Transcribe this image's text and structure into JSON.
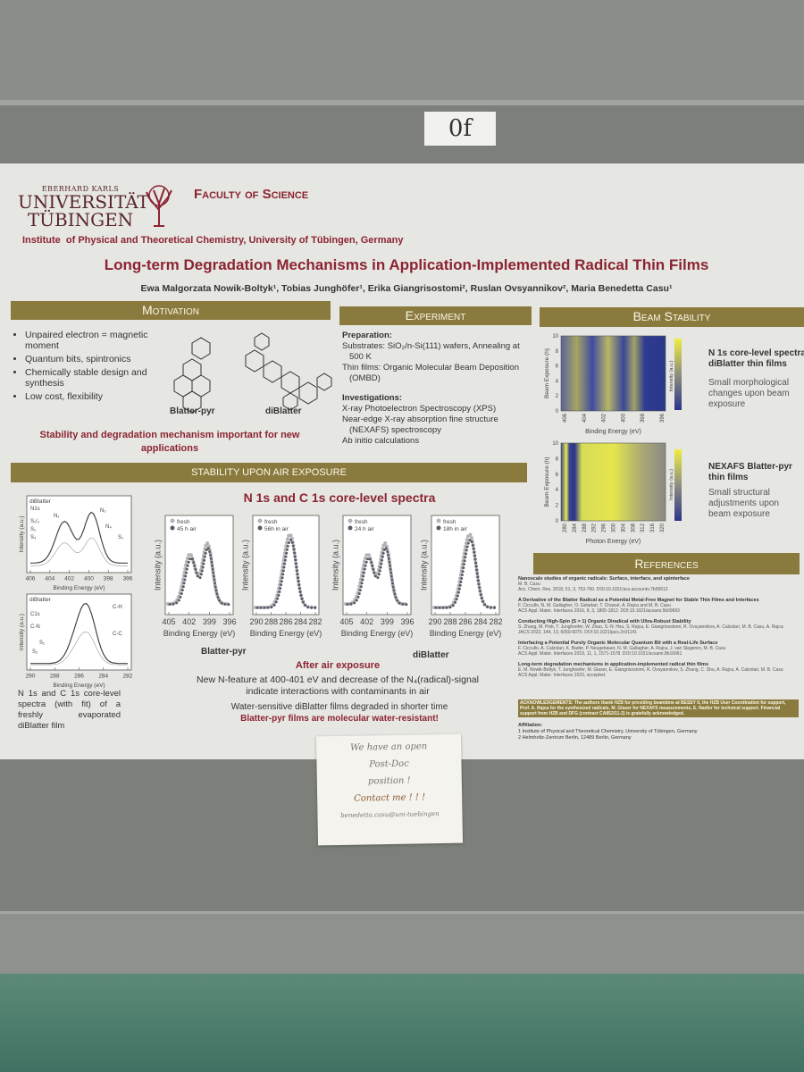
{
  "tag": "0f",
  "header": {
    "university": [
      "EBERHARD KARLS",
      "UNIVERSITÄT",
      "TÜBINGEN"
    ],
    "faculty": "Faculty of Science",
    "institute": "Institute  of Physical and Theoretical Chemistry, University of Tübingen, Germany",
    "title": "Long-term Degradation Mechanisms in Application-Implemented Radical Thin Films",
    "authors": "Ewa Malgorzata Nowik-Boltyk¹, Tobias Junghöfer¹, Erika Giangrisostomi², Ruslan Ovsyannikov², Maria Benedetta Casu¹"
  },
  "motivation": {
    "heading": "Motivation",
    "bullets": [
      "Unpaired electron = magnetic moment",
      "Quantum bits, spintronics",
      "Chemically stable design and synthesis",
      "Low cost, flexibility"
    ],
    "molecules": [
      "Blatter-pyr",
      "diBlatter"
    ],
    "conclusion": "Stability and degradation mechanism important for new applications"
  },
  "experiment": {
    "heading": "Experiment",
    "preparation_title": "Preparation:",
    "preparation": [
      "Substrates: SiO₂/n-Si(111) wafers, Annealing at 500 K",
      "Thin films: Organic Molecular Beam Deposition (OMBD)"
    ],
    "investigations_title": "Investigations:",
    "investigations": [
      "X-ray Photoelectron Spectroscopy (XPS)",
      "Near-edge X-ray absorption fine structure (NEXAFS) spectroscopy",
      "Ab initio calculations"
    ]
  },
  "beam": {
    "heading": "Beam Stability",
    "plots": [
      {
        "ylabel": "Beam Exposure (h)",
        "yticks": [
          0,
          2,
          4,
          6,
          8,
          10
        ],
        "xticks": [
          406,
          404,
          402,
          400,
          398,
          396
        ],
        "xlabel": "Binding Energy (eV)",
        "colorbar": "Intensity (a.u.)",
        "title": "N 1s core-level spectra diBlatter thin films",
        "text": "Small morphological changes upon beam exposure"
      },
      {
        "ylabel": "Beam Exposure (h)",
        "yticks": [
          0,
          2,
          4,
          6,
          8,
          10
        ],
        "xticks": [
          280,
          284,
          288,
          292,
          296,
          300,
          304,
          308,
          312,
          316,
          320
        ],
        "xlabel": "Photon Energy (eV)",
        "colorbar": "Intensity (a.u.)",
        "title": "NEXAFS Blatter-pyr thin films",
        "text": "Small structural adjustments upon beam exposure"
      }
    ]
  },
  "stability": {
    "heading": "STABILITY UPON AIR EXPOSURE",
    "subtitle": "N 1s and C 1s core-level spectra",
    "plots": [
      {
        "title": "diBlatter",
        "ylabel": "Intensity (a.u.)",
        "xlabel": "Binding Energy (eV)",
        "xticks": [
          406,
          404,
          402,
          400,
          398,
          396
        ],
        "annotations": [
          "N1s",
          "S₁/₃",
          "S₂",
          "S₃",
          "N₁",
          "N₂",
          "N₄",
          "S₁"
        ]
      },
      {
        "title": "diBlatter",
        "ylabel": "Intensity (a.u.)",
        "xlabel": "Binding Energy (eV)",
        "xticks": [
          290,
          288,
          286,
          284,
          282
        ],
        "annotations": [
          "C1s",
          "C-N",
          "S₁",
          "S₂",
          "C-H",
          "C-C"
        ]
      },
      {
        "ylabel": "Intensity (a.u.)",
        "xlabel": "Binding Energy (eV)",
        "xticks": [
          405,
          402,
          399,
          396
        ],
        "legend": [
          "fresh",
          "45 h air"
        ]
      },
      {
        "ylabel": "Intensity (a.u.)",
        "xlabel": "Binding Energy (eV)",
        "xticks": [
          290,
          288,
          286,
          284,
          282
        ],
        "legend": [
          "fresh",
          "56h in air"
        ]
      },
      {
        "ylabel": "Intensity (a.u.)",
        "xlabel": "Binding Energy (eV)",
        "xticks": [
          405,
          402,
          399,
          396
        ],
        "legend": [
          "fresh",
          "24 h air"
        ]
      },
      {
        "ylabel": "Intensity (a.u.)",
        "xlabel": "Binding Energy (eV)",
        "xticks": [
          290,
          288,
          286,
          284,
          282
        ],
        "legend": [
          "fresh",
          "18h in air"
        ]
      }
    ],
    "group_labels": [
      "Blatter-pyr",
      "diBlatter"
    ],
    "caption": "N 1s and C 1s core-level spectra (with fit) of a freshly evaporated diBlatter film",
    "after_title": "After air exposure",
    "finding": "New N-feature at 400-401 eV and decrease of the N₄(radical)-signal indicate interactions with contaminants in air",
    "water_sensitive": "Water-sensitive diBlatter films degraded in shorter time",
    "water_resistant": "Blatter-pyr films are molecular water-resistant!"
  },
  "references": {
    "heading": "References",
    "items": [
      {
        "title": "Nanoscale studies of organic radicals: Surface, interface, and spinterface",
        "authors": "M. B. Casu",
        "source": "Acc. Chem. Res. 2018, 51, 3, 753-760. DOI:10.1021/acs.accounts.7b00612"
      },
      {
        "title": "A Derivative of the Blatter Radical as a Potential Metal-Free Magnet for Stable Thin Films and Interfaces",
        "authors": "F. Ciccullo, N. M. Gallagher, O. Geladari, T. Chassé, A. Rajca and M. B. Casu",
        "source": "ACS Appl. Mater. Interfaces 2016, 8, 3, 1805-1812. DOI:10.1021/acsami.5b09693"
      },
      {
        "title": "Conducting High-Spin (S = 1) Organic Diradical with Ultra-Robust Stability",
        "authors": "S. Zhang, M. Pink, T. Junghoefer, W. Zhao, S.-N. Hsu, S. Rajca, E. Giangrisostomi, R. Ovsyannikov, A. Calzolari, M. B. Casu, A. Rajca",
        "source": "JACS 2022, 144, 13, 6059-6070. DOI:10.1021/jacs.2c01141"
      },
      {
        "title": "Interfacing a Potential Purely Organic Molecular Quantum Bit with a Real-Life Surface",
        "authors": "F. Ciccullo, A. Calzolari, K. Bader, P. Neugebauer, N. M. Gallagher, A. Rajca, J. van Slageren, M. B. Casu",
        "source": "ACS Appl. Mater. Interfaces 2019, 11, 1, 1571-1578. DOI:10.1021/acsami.8b16061"
      },
      {
        "title": "Long-term degradation mechanisms in application-implemented radical thin films",
        "authors": "E. M. Nowik-Boltyk, T. Junghoefer, M. Glaser, E. Giangrisostomi, R. Ovsyannikov, S. Zhang, C. Shu, A. Rajca, A. Calzolari, M. B. Casu",
        "source": "ACS Appl. Mater. Interfaces 2023, accepted."
      }
    ],
    "acknowledgements": "ACKNOWLEDGEMENTS: The authors thank HZB for providing beamtime at BESSY II, the HZB User Coordination for support, Prof. A. Rajca for the synthesized radicals, M. Glaser for NEXAFS measurements, E. Nadler for technical support. Financial support from HZB and DFG (contract CA852/11-2) is gratefully acknowledged.",
    "affiliation_title": "Affiliation:",
    "affiliations": [
      "1 Institute of Physical and Theoretical Chemistry, University of Tübingen, Germany",
      "2 Helmholtz-Zentrum Berlin, 12489 Berlin, Germany"
    ]
  },
  "sticky_note": [
    "We have an open",
    "Post-Doc",
    "position !",
    "Contact me ! ! !",
    "benedetta.casu@uni-tuebingen"
  ]
}
